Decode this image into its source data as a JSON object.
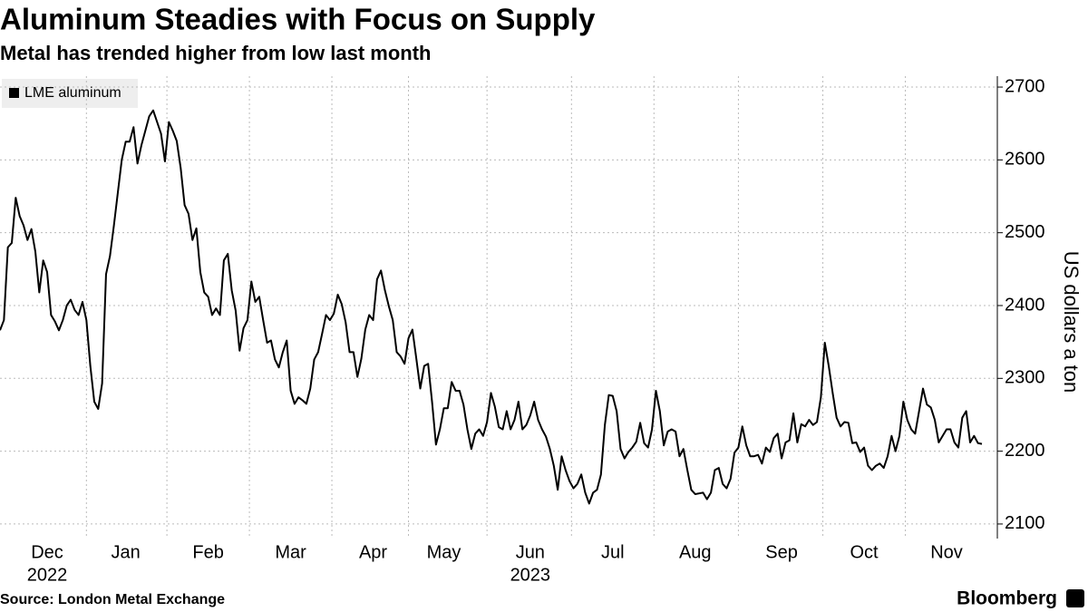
{
  "chart_data": {
    "type": "line",
    "title": "Aluminum Steadies with Focus on Supply",
    "subtitle": "Metal has trended higher from low last month",
    "y_axis_label": "US dollars a ton",
    "source": "Source: London Metal Exchange",
    "brand": "Bloomberg",
    "legend": "top-left",
    "grid": true,
    "categories": [
      null,
      null,
      null,
      null,
      null,
      null,
      null,
      null,
      null,
      null,
      null,
      null,
      "Dec",
      null,
      null,
      null,
      null,
      null,
      null,
      null,
      null,
      null,
      null,
      null,
      null,
      null,
      null,
      null,
      null,
      null,
      null,
      null,
      "Jan",
      null,
      null,
      null,
      null,
      null,
      null,
      null,
      null,
      null,
      null,
      null,
      null,
      null,
      null,
      null,
      null,
      null,
      null,
      null,
      null,
      "Feb",
      null,
      null,
      null,
      null,
      null,
      null,
      null,
      null,
      null,
      null,
      null,
      null,
      null,
      null,
      null,
      null,
      null,
      null,
      null,
      null,
      "Mar",
      null,
      null,
      null,
      null,
      null,
      null,
      null,
      null,
      null,
      null,
      null,
      null,
      null,
      null,
      null,
      null,
      null,
      null,
      null,
      null,
      "Apr",
      null,
      null,
      null,
      null,
      null,
      null,
      null,
      null,
      null,
      null,
      null,
      null,
      null,
      null,
      null,
      null,
      null,
      "May",
      null,
      null,
      null,
      null,
      null,
      null,
      null,
      null,
      null,
      null,
      null,
      null,
      null,
      null,
      null,
      null,
      null,
      null,
      null,
      null,
      null,
      "Jun",
      null,
      null,
      null,
      null,
      null,
      null,
      null,
      null,
      null,
      null,
      null,
      null,
      null,
      null,
      null,
      null,
      null,
      null,
      null,
      null,
      "Jul",
      null,
      null,
      null,
      null,
      null,
      null,
      null,
      null,
      null,
      null,
      null,
      null,
      null,
      null,
      null,
      null,
      null,
      null,
      null,
      null,
      "Aug",
      null,
      null,
      null,
      null,
      null,
      null,
      null,
      null,
      null,
      null,
      null,
      null,
      null,
      null,
      null,
      null,
      null,
      null,
      null,
      null,
      null,
      "Sep",
      null,
      null,
      null,
      null,
      null,
      null,
      null,
      null,
      null,
      null,
      null,
      null,
      null,
      null,
      null,
      null,
      null,
      null,
      null,
      null,
      "Oct",
      null,
      null,
      null,
      null,
      null,
      null,
      null,
      null,
      null,
      null,
      null,
      null,
      null,
      null,
      null,
      null,
      null,
      null,
      null,
      null,
      "Nov",
      null,
      null,
      null,
      null,
      null,
      null,
      null,
      null,
      null
    ],
    "years": [
      {
        "label": "2022",
        "category": "Dec"
      },
      {
        "label": "2023",
        "category": "Jun"
      }
    ],
    "series": [
      {
        "name": "LME aluminum",
        "color": "#000000",
        "values": [
          2366,
          2380,
          2480,
          2486,
          2548,
          2523,
          2510,
          2490,
          2505,
          2474,
          2418,
          2462,
          2446,
          2387,
          2378,
          2366,
          2380,
          2400,
          2408,
          2394,
          2387,
          2405,
          2380,
          2317,
          2268,
          2258,
          2293,
          2443,
          2468,
          2510,
          2555,
          2600,
          2625,
          2625,
          2645,
          2595,
          2620,
          2640,
          2660,
          2668,
          2652,
          2636,
          2598,
          2652,
          2640,
          2626,
          2589,
          2538,
          2526,
          2490,
          2506,
          2446,
          2418,
          2412,
          2387,
          2396,
          2387,
          2462,
          2471,
          2421,
          2393,
          2338,
          2369,
          2380,
          2433,
          2405,
          2412,
          2380,
          2349,
          2352,
          2326,
          2315,
          2336,
          2352,
          2283,
          2265,
          2274,
          2270,
          2265,
          2286,
          2326,
          2336,
          2361,
          2387,
          2380,
          2389,
          2415,
          2402,
          2377,
          2336,
          2336,
          2302,
          2327,
          2367,
          2387,
          2380,
          2436,
          2448,
          2421,
          2399,
          2380,
          2336,
          2330,
          2320,
          2355,
          2367,
          2327,
          2286,
          2317,
          2320,
          2268,
          2209,
          2230,
          2259,
          2259,
          2295,
          2283,
          2283,
          2264,
          2230,
          2203,
          2224,
          2230,
          2221,
          2240,
          2280,
          2261,
          2233,
          2230,
          2255,
          2230,
          2243,
          2268,
          2230,
          2236,
          2249,
          2268,
          2243,
          2230,
          2220,
          2203,
          2180,
          2147,
          2193,
          2174,
          2159,
          2149,
          2155,
          2168,
          2143,
          2128,
          2143,
          2147,
          2168,
          2236,
          2277,
          2276,
          2255,
          2203,
          2190,
          2199,
          2205,
          2213,
          2239,
          2211,
          2205,
          2230,
          2283,
          2255,
          2208,
          2227,
          2230,
          2227,
          2193,
          2203,
          2174,
          2147,
          2141,
          2142,
          2143,
          2134,
          2143,
          2174,
          2177,
          2155,
          2149,
          2162,
          2198,
          2205,
          2234,
          2208,
          2193,
          2193,
          2195,
          2183,
          2205,
          2199,
          2218,
          2224,
          2190,
          2212,
          2215,
          2252,
          2212,
          2237,
          2234,
          2243,
          2236,
          2240,
          2274,
          2349,
          2317,
          2280,
          2246,
          2234,
          2240,
          2239,
          2211,
          2212,
          2199,
          2205,
          2180,
          2174,
          2180,
          2183,
          2177,
          2193,
          2221,
          2200,
          2221,
          2268,
          2243,
          2230,
          2224,
          2255,
          2286,
          2264,
          2260,
          2243,
          2212,
          2221,
          2230,
          2230,
          2212,
          2205,
          2246,
          2255,
          2212,
          2221,
          2211,
          2210
        ]
      }
    ],
    "ylim": [
      2080,
      2715
    ],
    "yticks": [
      2100,
      2200,
      2300,
      2400,
      2500,
      2600,
      2700
    ]
  }
}
